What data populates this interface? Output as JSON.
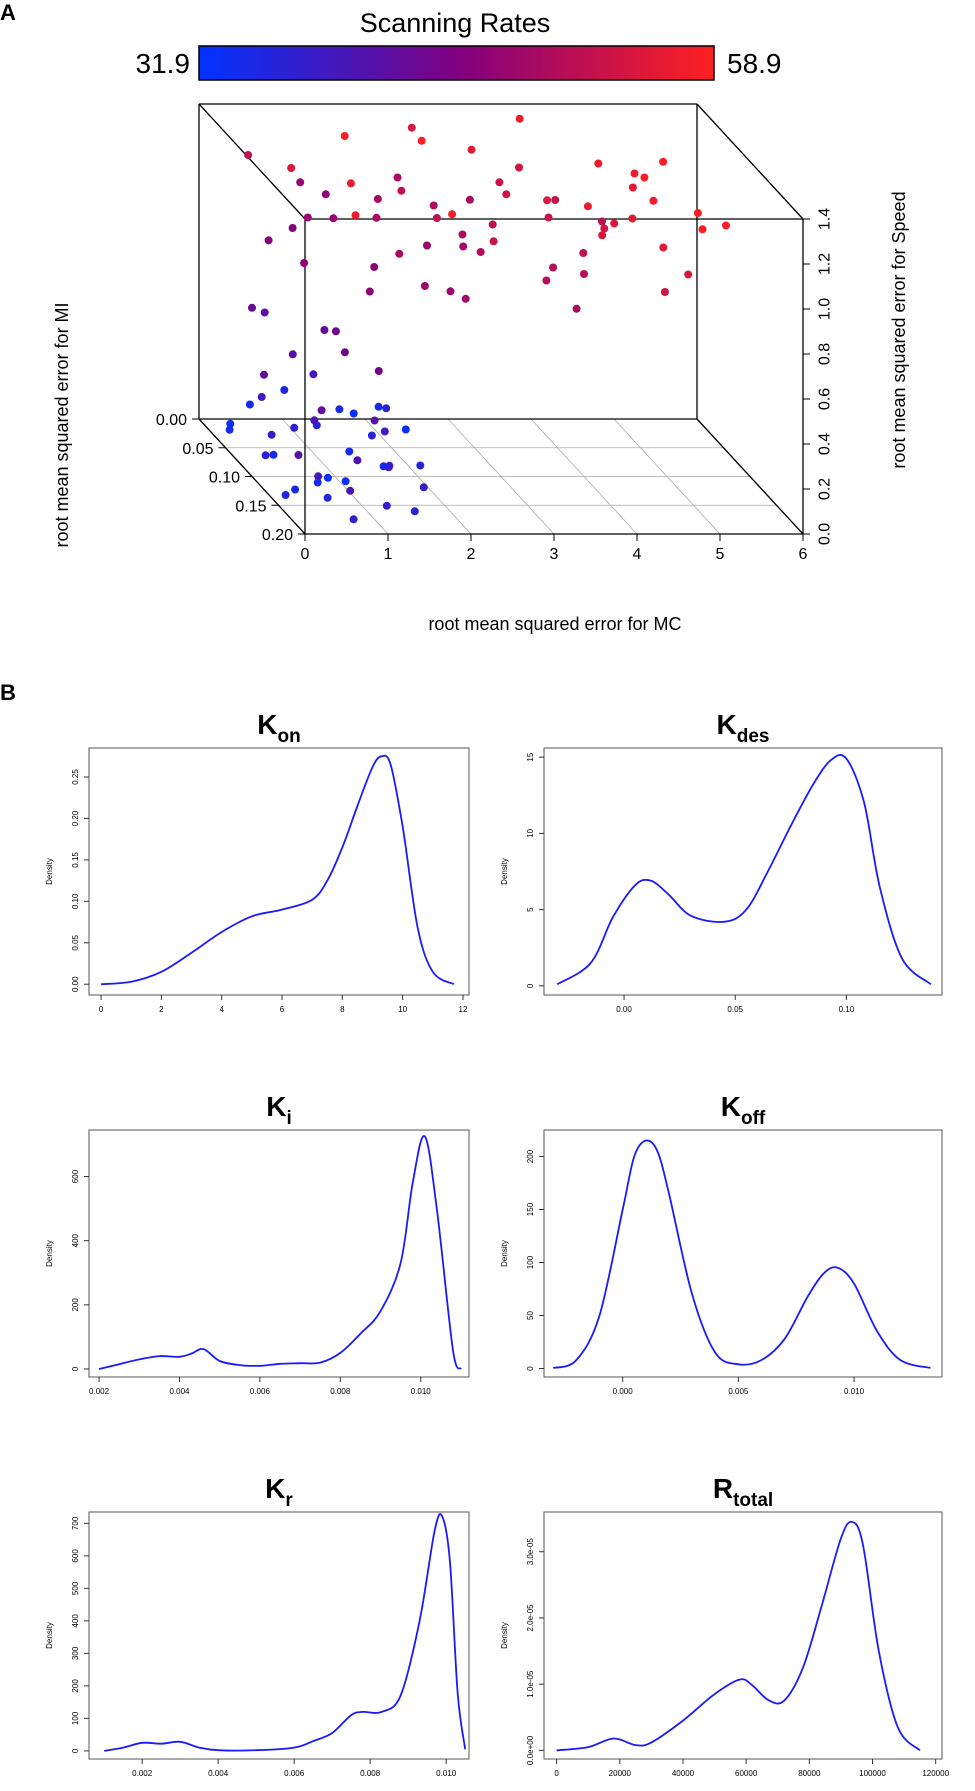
{
  "panel_a": {
    "label": "A",
    "colorbar": {
      "title": "Scanning Rates",
      "min_label": "31.9",
      "max_label": "58.9",
      "low_color": "#0033ff",
      "mid_color": "#800080",
      "high_color": "#ff2020"
    }
  },
  "panel_b": {
    "label": "B"
  },
  "chart_data": [
    {
      "type": "scatter",
      "subtype": "scatter3d",
      "title": "Scanning Rates",
      "xlabel": "root mean squared error for MC",
      "ylabel": "root mean squared error for MI",
      "zlabel": "root mean squared error for Speed",
      "xlim": [
        0,
        6
      ],
      "ylim": [
        0,
        0.2
      ],
      "zlim": [
        0,
        1.4
      ],
      "xticks": [
        "0",
        "1",
        "2",
        "3",
        "4",
        "5",
        "6"
      ],
      "yticks": [
        "0.00",
        "0.05",
        "0.10",
        "0.15",
        "0.20"
      ],
      "zticks": [
        "0.0",
        "0.2",
        "0.4",
        "0.6",
        "0.8",
        "1.0",
        "1.2",
        "1.4"
      ],
      "color_range": [
        31.9,
        58.9
      ],
      "points": [
        [
          0.05,
          0.05,
          0.08,
          34
        ],
        [
          0.1,
          0.11,
          0.12,
          37
        ],
        [
          0.2,
          0.15,
          0.07,
          35
        ],
        [
          0.3,
          0.09,
          0.16,
          38
        ],
        [
          0.4,
          0.18,
          0.11,
          36
        ],
        [
          0.5,
          0.04,
          0.2,
          39
        ],
        [
          0.6,
          0.13,
          0.05,
          34
        ],
        [
          0.7,
          0.07,
          0.14,
          37
        ],
        [
          0.8,
          0.16,
          0.09,
          40
        ],
        [
          0.9,
          0.02,
          0.18,
          35
        ],
        [
          1.0,
          0.12,
          0.03,
          33
        ],
        [
          1.1,
          0.05,
          0.1,
          36
        ],
        [
          1.2,
          0.17,
          0.22,
          41
        ],
        [
          1.3,
          0.08,
          0.06,
          34
        ],
        [
          1.4,
          0.14,
          0.15,
          38
        ],
        [
          1.5,
          0.03,
          0.12,
          35
        ],
        [
          1.6,
          0.1,
          0.2,
          39
        ],
        [
          1.7,
          0.06,
          0.08,
          36
        ],
        [
          1.8,
          0.01,
          0.05,
          33
        ],
        [
          2.0,
          0.04,
          0.15,
          37
        ],
        [
          0.25,
          0.02,
          0.03,
          33
        ],
        [
          0.45,
          0.07,
          0.02,
          34
        ],
        [
          0.75,
          0.1,
          0.25,
          40
        ],
        [
          1.05,
          0.19,
          0.1,
          38
        ],
        [
          1.35,
          0.12,
          0.3,
          41
        ],
        [
          1.65,
          0.09,
          0.02,
          34
        ],
        [
          0.15,
          0.14,
          0.02,
          35
        ],
        [
          0.55,
          0.01,
          0.09,
          34
        ],
        [
          0.85,
          0.11,
          0.02,
          33
        ],
        [
          1.25,
          0.02,
          0.25,
          39
        ],
        [
          1.9,
          0.12,
          0.1,
          36
        ],
        [
          2.1,
          0.01,
          0.08,
          34
        ],
        [
          0.35,
          0.17,
          0.18,
          39
        ],
        [
          0.65,
          0.19,
          0.04,
          37
        ],
        [
          0.95,
          0.15,
          0.2,
          40
        ],
        [
          1.45,
          0.18,
          0.05,
          36
        ],
        [
          1.75,
          0.15,
          0.08,
          38
        ],
        [
          0.05,
          0.18,
          0.3,
          41
        ],
        [
          2.3,
          0.03,
          0.03,
          33
        ],
        [
          0.4,
          0.06,
          0.35,
          42
        ],
        [
          0.2,
          0.2,
          0.55,
          42
        ],
        [
          0.3,
          0.13,
          0.62,
          41
        ],
        [
          0.8,
          0.15,
          0.68,
          44
        ],
        [
          1.0,
          0.08,
          0.6,
          43
        ],
        [
          0.0,
          0.1,
          0.75,
          43
        ],
        [
          0.6,
          0.03,
          0.55,
          42
        ],
        [
          1.4,
          0.12,
          0.52,
          44
        ],
        [
          0.5,
          0.18,
          0.85,
          44
        ],
        [
          0.2,
          0.1,
          1.05,
          46
        ],
        [
          0.5,
          0.12,
          1.0,
          47
        ],
        [
          0.8,
          0.08,
          1.1,
          48
        ],
        [
          1.1,
          0.15,
          0.95,
          47
        ],
        [
          1.3,
          0.05,
          1.02,
          48
        ],
        [
          1.5,
          0.1,
          1.15,
          50
        ],
        [
          1.7,
          0.16,
          1.0,
          49
        ],
        [
          1.9,
          0.04,
          1.08,
          49
        ],
        [
          2.1,
          0.12,
          1.2,
          52
        ],
        [
          2.3,
          0.07,
          0.95,
          48
        ],
        [
          2.5,
          0.14,
          1.1,
          51
        ],
        [
          2.7,
          0.02,
          1.0,
          50
        ],
        [
          2.9,
          0.1,
          1.12,
          52
        ],
        [
          3.1,
          0.17,
          1.05,
          51
        ],
        [
          3.3,
          0.05,
          1.18,
          53
        ],
        [
          3.5,
          0.12,
          0.98,
          51
        ],
        [
          3.7,
          0.08,
          1.1,
          53
        ],
        [
          3.9,
          0.15,
          1.2,
          55
        ],
        [
          4.1,
          0.03,
          1.05,
          53
        ],
        [
          4.3,
          0.11,
          1.15,
          55
        ],
        [
          4.5,
          0.06,
          1.0,
          54
        ],
        [
          4.7,
          0.14,
          1.12,
          56
        ],
        [
          4.9,
          0.09,
          1.2,
          57
        ],
        [
          5.1,
          0.02,
          1.08,
          56
        ],
        [
          5.3,
          0.12,
          1.15,
          58
        ],
        [
          1.0,
          0.02,
          0.9,
          46
        ],
        [
          1.6,
          0.08,
          0.88,
          47
        ],
        [
          2.2,
          0.13,
          0.9,
          48
        ],
        [
          2.8,
          0.06,
          0.92,
          49
        ],
        [
          3.4,
          0.18,
          0.95,
          50
        ],
        [
          4.0,
          0.1,
          0.9,
          51
        ],
        [
          4.6,
          0.04,
          0.98,
          52
        ],
        [
          2.4,
          0.18,
          1.25,
          53
        ],
        [
          3.0,
          0.11,
          1.28,
          54
        ],
        [
          3.6,
          0.04,
          1.22,
          54
        ],
        [
          4.2,
          0.16,
          1.3,
          56
        ],
        [
          4.8,
          0.07,
          1.27,
          57
        ],
        [
          5.4,
          0.03,
          1.22,
          58
        ],
        [
          1.2,
          0.19,
          1.22,
          50
        ],
        [
          1.8,
          0.1,
          1.27,
          52
        ],
        [
          0.9,
          0.05,
          1.18,
          48
        ],
        [
          1.4,
          0.02,
          1.05,
          47
        ],
        [
          2.0,
          0.19,
          1.02,
          49
        ],
        [
          2.6,
          0.09,
          1.05,
          50
        ],
        [
          3.2,
          0.01,
          1.0,
          50
        ],
        [
          3.8,
          0.13,
          1.07,
          52
        ],
        [
          4.4,
          0.19,
          1.05,
          54
        ],
        [
          5.0,
          0.14,
          1.0,
          55
        ],
        [
          5.5,
          0.08,
          1.12,
          58
        ],
        [
          2.2,
          0.03,
          1.15,
          50
        ],
        [
          2.5,
          0.01,
          1.32,
          55
        ],
        [
          2.9,
          0.06,
          1.35,
          56
        ],
        [
          3.3,
          0.14,
          1.33,
          55
        ],
        [
          3.8,
          0.01,
          1.36,
          57
        ],
        [
          4.3,
          0.08,
          1.34,
          57
        ],
        [
          1.0,
          0.13,
          1.38,
          57
        ],
        [
          1.5,
          0.04,
          1.36,
          58
        ],
        [
          1.9,
          0.18,
          1.37,
          58
        ],
        [
          2.3,
          0.06,
          1.39,
          58
        ],
        [
          0.6,
          0.08,
          1.32,
          55
        ],
        [
          0.8,
          0.17,
          1.34,
          57
        ],
        [
          3.6,
          0.17,
          1.38,
          57
        ],
        [
          4.6,
          0.12,
          1.38,
          58
        ],
        [
          0.4,
          0.03,
          1.25,
          52
        ],
        [
          5.2,
          0.18,
          1.32,
          58
        ]
      ]
    },
    {
      "type": "line",
      "title": "K",
      "subscript": "on",
      "ylabel": "Density",
      "xlim": [
        -0.4,
        12.2
      ],
      "ylim": [
        -0.013,
        0.285
      ],
      "xticks": [
        0,
        2,
        4,
        6,
        8,
        10,
        12
      ],
      "xtick_labels": [
        "0",
        "2",
        "4",
        "6",
        "8",
        "10",
        "12"
      ],
      "yticks": [
        0,
        0.05,
        0.1,
        0.15,
        0.2,
        0.25
      ],
      "ytick_labels": [
        "0.00",
        "0.05",
        "0.10",
        "0.15",
        "0.20",
        "0.25"
      ],
      "x": [
        0,
        1,
        2,
        3,
        4,
        5,
        6,
        7,
        7.5,
        8,
        8.5,
        9,
        9.3,
        9.6,
        10,
        10.5,
        11,
        11.7
      ],
      "y": [
        0,
        0.003,
        0.015,
        0.038,
        0.063,
        0.082,
        0.09,
        0.102,
        0.125,
        0.165,
        0.215,
        0.262,
        0.275,
        0.265,
        0.19,
        0.068,
        0.015,
        0
      ]
    },
    {
      "type": "line",
      "title": "K",
      "subscript": "des",
      "ylabel": "Density",
      "xlim": [
        -0.036,
        0.143
      ],
      "ylim": [
        -0.6,
        15.6
      ],
      "xticks": [
        0.0,
        0.05,
        0.1
      ],
      "xtick_labels": [
        "0.00",
        "0.05",
        "0.10"
      ],
      "yticks": [
        0,
        5,
        10,
        15
      ],
      "ytick_labels": [
        "0",
        "5",
        "10",
        "15"
      ],
      "x": [
        -0.03,
        -0.015,
        -0.005,
        0.005,
        0.012,
        0.02,
        0.03,
        0.045,
        0.055,
        0.065,
        0.075,
        0.085,
        0.093,
        0.1,
        0.108,
        0.115,
        0.125,
        0.138
      ],
      "y": [
        0.1,
        1.5,
        4.5,
        6.6,
        6.9,
        6.0,
        4.6,
        4.2,
        5.0,
        7.6,
        10.5,
        13.2,
        14.8,
        14.9,
        12.0,
        6.5,
        1.8,
        0.1
      ]
    },
    {
      "type": "line",
      "title": "K",
      "subscript": "i",
      "ylabel": "Density",
      "xlim": [
        0.00175,
        0.0112
      ],
      "ylim": [
        -25,
        745
      ],
      "xticks": [
        0.002,
        0.004,
        0.006,
        0.008,
        0.01
      ],
      "xtick_labels": [
        "0.002",
        "0.004",
        "0.006",
        "0.008",
        "0.010"
      ],
      "yticks": [
        0,
        200,
        400,
        600
      ],
      "ytick_labels": [
        "0",
        "200",
        "400",
        "600"
      ],
      "x": [
        0.002,
        0.0025,
        0.003,
        0.0035,
        0.004,
        0.0043,
        0.0046,
        0.005,
        0.0055,
        0.006,
        0.0065,
        0.007,
        0.0075,
        0.008,
        0.0085,
        0.009,
        0.0095,
        0.0098,
        0.0101,
        0.0104,
        0.0108,
        0.011
      ],
      "y": [
        0,
        15,
        30,
        40,
        38,
        48,
        62,
        25,
        12,
        10,
        16,
        18,
        20,
        50,
        110,
        180,
        330,
        580,
        725,
        500,
        60,
        0
      ]
    },
    {
      "type": "line",
      "title": "K",
      "subscript": "off",
      "ylabel": "Density",
      "xlim": [
        -0.0034,
        0.0138
      ],
      "ylim": [
        -8,
        225
      ],
      "xticks": [
        0.0,
        0.005,
        0.01
      ],
      "xtick_labels": [
        "0.000",
        "0.005",
        "0.010"
      ],
      "yticks": [
        0,
        50,
        100,
        150,
        200
      ],
      "ytick_labels": [
        "0",
        "50",
        "100",
        "150",
        "200"
      ],
      "x": [
        -0.003,
        -0.002,
        -0.001,
        0.0,
        0.0005,
        0.001,
        0.0015,
        0.002,
        0.003,
        0.004,
        0.005,
        0.006,
        0.007,
        0.008,
        0.0087,
        0.0093,
        0.01,
        0.011,
        0.012,
        0.0133
      ],
      "y": [
        0.5,
        8,
        50,
        150,
        200,
        215,
        205,
        165,
        70,
        15,
        4,
        8,
        28,
        68,
        90,
        95,
        80,
        35,
        8,
        0.5
      ]
    },
    {
      "type": "line",
      "title": "K",
      "subscript": "r",
      "ylabel": "Density",
      "xlim": [
        0.0006,
        0.0106
      ],
      "ylim": [
        -25,
        735
      ],
      "xticks": [
        0.002,
        0.004,
        0.006,
        0.008,
        0.01
      ],
      "xtick_labels": [
        "0.002",
        "0.004",
        "0.006",
        "0.008",
        "0.010"
      ],
      "yticks": [
        0,
        100,
        200,
        300,
        400,
        500,
        600,
        700
      ],
      "ytick_labels": [
        "0",
        "100",
        "200",
        "300",
        "400",
        "500",
        "600",
        "700"
      ],
      "x": [
        0.001,
        0.0015,
        0.002,
        0.0025,
        0.003,
        0.0035,
        0.004,
        0.005,
        0.006,
        0.0065,
        0.007,
        0.0075,
        0.0078,
        0.0083,
        0.0088,
        0.0093,
        0.0097,
        0.0099,
        0.0101,
        0.0103,
        0.0105
      ],
      "y": [
        0,
        10,
        25,
        22,
        28,
        10,
        2,
        2,
        10,
        30,
        55,
        110,
        120,
        120,
        170,
        400,
        680,
        720,
        580,
        180,
        5
      ]
    },
    {
      "type": "line",
      "title": "R",
      "subscript": "total",
      "ylabel": "Density",
      "xlim": [
        -4000,
        122000
      ],
      "ylim": [
        -1.3e-06,
        3.6e-05
      ],
      "xticks": [
        0,
        20000,
        40000,
        60000,
        80000,
        100000,
        120000
      ],
      "xtick_labels": [
        "0",
        "20000",
        "40000",
        "60000",
        "80000",
        "100000",
        "120000"
      ],
      "yticks": [
        0,
        1e-05,
        2e-05,
        3e-05
      ],
      "ytick_labels": [
        "0.0e+00",
        "1.0e-05",
        "2.0e-05",
        "3.0e-05"
      ],
      "x": [
        0,
        10000,
        18000,
        25000,
        30000,
        40000,
        50000,
        58000,
        62000,
        67000,
        72000,
        78000,
        84000,
        90000,
        93500,
        97000,
        102000,
        108000,
        115000
      ],
      "y": [
        0.0,
        5e-07,
        1.8e-06,
        8e-07,
        1.2e-06,
        4.5e-06,
        8.5e-06,
        1.07e-05,
        9.8e-06,
        7.6e-06,
        7.5e-06,
        1.25e-05,
        2.2e-05,
        3.2e-05,
        3.45e-05,
        3.1e-05,
        1.5e-05,
        3.5e-06,
        0.0
      ]
    }
  ]
}
